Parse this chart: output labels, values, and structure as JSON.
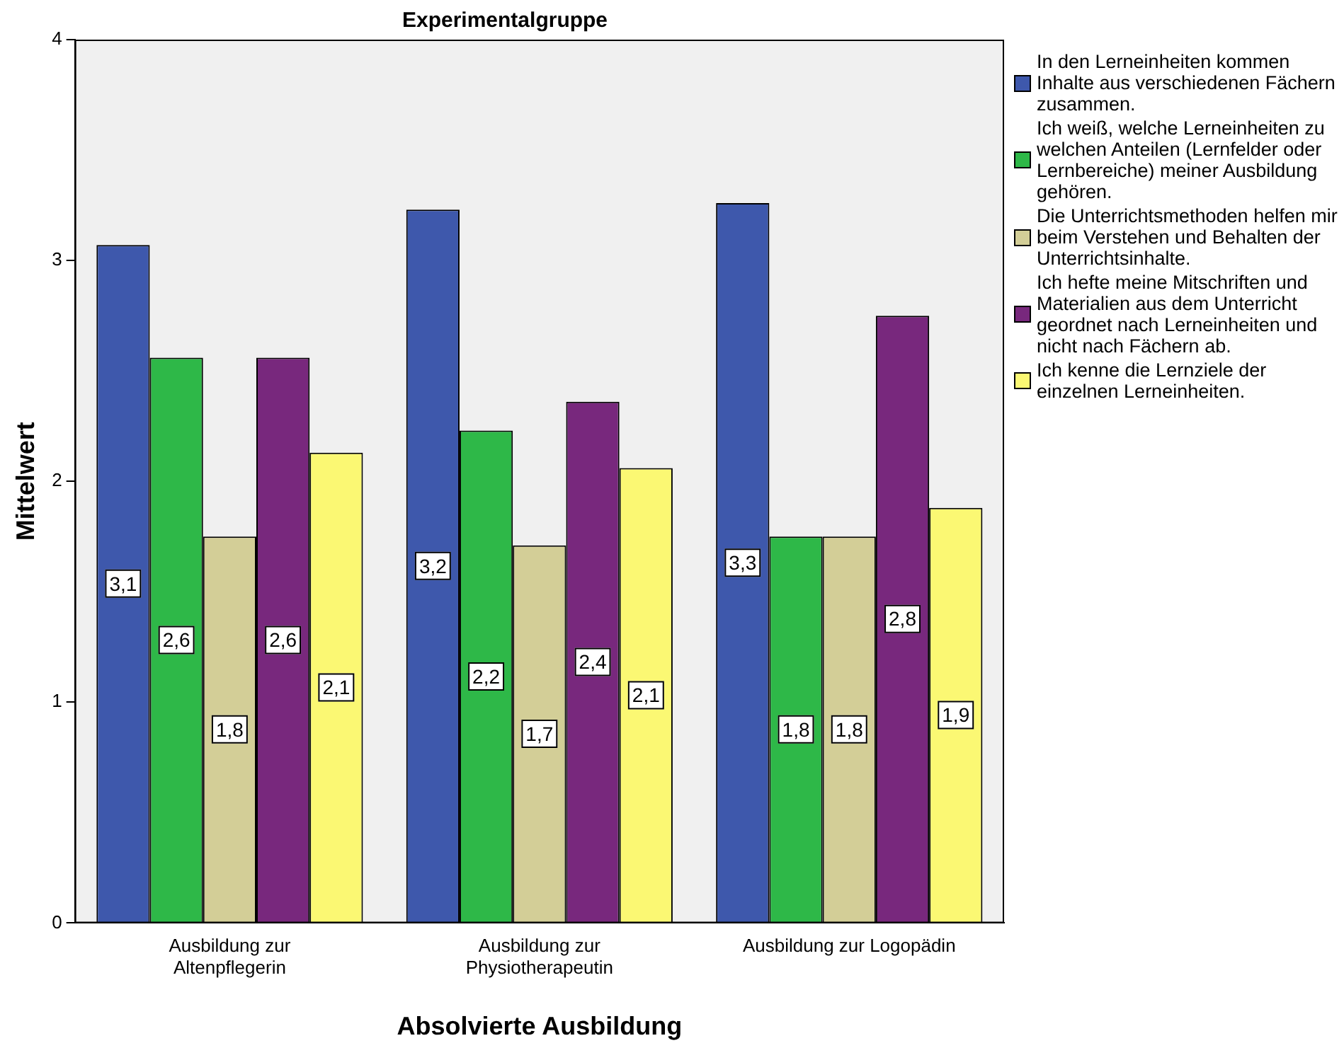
{
  "chart_data": {
    "type": "bar",
    "title": "Experimentalgruppe",
    "xlabel": "Absolvierte Ausbildung",
    "ylabel": "Mittelwert",
    "categories": [
      "Ausbildung zur Altenpflegerin",
      "Ausbildung zur Physiotherapeutin",
      "Ausbildung zur Logopädin"
    ],
    "series": [
      {
        "name": "In den Lerneinheiten kommen Inhalte aus verschiedenen Fächern zusammen.",
        "color": "#3e58ac",
        "values": [
          3.07,
          3.23,
          3.26
        ],
        "value_labels": [
          "3,1",
          "3,2",
          "3,3"
        ]
      },
      {
        "name": "Ich weiß, welche Lerneinheiten zu welchen Anteilen (Lernfelder oder Lernbereiche) meiner Ausbildung gehören.",
        "color": "#2eb848",
        "values": [
          2.56,
          2.23,
          1.75
        ],
        "value_labels": [
          "2,6",
          "2,2",
          "1,8"
        ]
      },
      {
        "name": "Die Unterrichtsmethoden helfen mir beim Verstehen und Behalten der Unterrichtsinhalte.",
        "color": "#d3ce97",
        "values": [
          1.75,
          1.71,
          1.75
        ],
        "value_labels": [
          "1,8",
          "1,7",
          "1,8"
        ]
      },
      {
        "name": "Ich hefte meine Mitschriften und Materialien aus dem Unterricht geordnet nach Lerneinheiten und nicht nach Fächern ab.",
        "color": "#78287d",
        "values": [
          2.56,
          2.36,
          2.75
        ],
        "value_labels": [
          "2,6",
          "2,4",
          "2,8"
        ]
      },
      {
        "name": "Ich kenne die Lernziele der einzelnen Lerneinheiten.",
        "color": "#fbf873",
        "values": [
          2.13,
          2.06,
          1.88
        ],
        "value_labels": [
          "2,1",
          "2,1",
          "1,9"
        ]
      }
    ],
    "ylim": [
      0,
      4.0
    ],
    "yticks": [
      0,
      1,
      2,
      3,
      4
    ],
    "grid": false,
    "legend": "right"
  }
}
